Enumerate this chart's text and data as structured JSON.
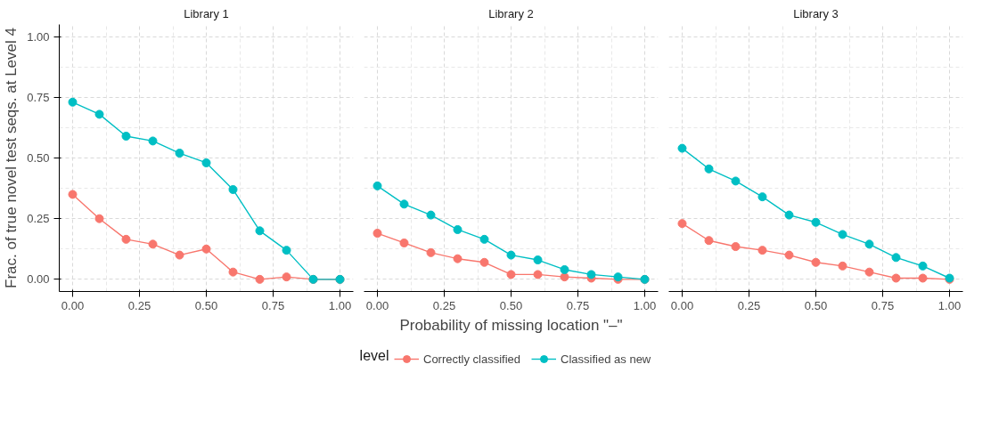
{
  "chart_data": [
    {
      "type": "line",
      "title": "Library 1",
      "ylabel": "Frac. of true novel test seqs. at Level 4",
      "x": [
        0,
        0.1,
        0.2,
        0.3,
        0.4,
        0.5,
        0.6,
        0.7,
        0.8,
        0.9,
        1.0
      ],
      "xlim": [
        -0.05,
        1.05
      ],
      "ylim": [
        -0.05,
        1.05
      ],
      "xticks": [
        "0.00",
        "0.25",
        "0.50",
        "0.75",
        "1.00"
      ],
      "yticks": [
        {
          "value": 0,
          "label": "0.00"
        },
        {
          "value": 0.25,
          "label": "0.25"
        },
        {
          "value": 0.5,
          "label": "0.50"
        },
        {
          "value": 0.75,
          "label": "0.75"
        },
        {
          "value": 1,
          "label": "1.00"
        }
      ],
      "grid": true,
      "marker": "circle",
      "line_style": "solid",
      "series": [
        {
          "color": "#f8766d",
          "values": [
            0.35,
            0.25,
            0.165,
            0.145,
            0.1,
            0.125,
            0.03,
            0,
            0.01,
            0,
            0
          ]
        },
        {
          "color": "#00bfc4",
          "values": [
            0.73,
            0.68,
            0.59,
            0.57,
            0.52,
            0.48,
            0.37,
            0.2,
            0.12,
            0,
            0
          ]
        }
      ]
    },
    {
      "type": "line",
      "title": "Library 2",
      "xlabel": "Probability of missing location \"–\"",
      "legend_title": "level",
      "legend": "bottom",
      "x": [
        0,
        0.1,
        0.2,
        0.3,
        0.4,
        0.5,
        0.6,
        0.7,
        0.8,
        0.9,
        1.0
      ],
      "xlim": [
        -0.05,
        1.05
      ],
      "ylim": [
        -0.05,
        1.05
      ],
      "xticks": [
        {
          "value": 0,
          "label": "0.00"
        },
        {
          "value": 0.25,
          "label": "0.25"
        },
        {
          "value": 0.5,
          "label": "0.50"
        },
        {
          "value": 0.75,
          "label": "0.75"
        },
        {
          "value": 1,
          "label": "1.00"
        }
      ],
      "tick_labels": "x",
      "grid": true,
      "marker": "circle",
      "line_style": "solid",
      "series": [
        {
          "name": "Correctly classified",
          "color": "#f8766d",
          "values": [
            0.19,
            0.15,
            0.11,
            0.085,
            0.07,
            0.02,
            0.02,
            0.01,
            0.005,
            0,
            0
          ]
        },
        {
          "name": "Classified as new",
          "color": "#00bfc4",
          "values": [
            0.385,
            0.31,
            0.265,
            0.205,
            0.165,
            0.1,
            0.08,
            0.04,
            0.02,
            0.01,
            0
          ]
        }
      ]
    },
    {
      "type": "line",
      "title": "Library 3",
      "x": [
        0,
        0.1,
        0.2,
        0.3,
        0.4,
        0.5,
        0.6,
        0.7,
        0.8,
        0.9,
        1.0
      ],
      "xlim": [
        -0.05,
        1.05
      ],
      "ylim": [
        -0.05,
        1.05
      ],
      "xticks": [
        {
          "value": 0,
          "label": "0.00"
        },
        {
          "value": 0.25,
          "label": "0.25"
        },
        {
          "value": 0.5,
          "label": "0.50"
        },
        {
          "value": 0.75,
          "label": "0.75"
        },
        {
          "value": 1,
          "label": "1.00"
        }
      ],
      "tick_labels": "x",
      "grid": true,
      "marker": "circle",
      "line_style": "solid",
      "series": [
        {
          "color": "#f8766d",
          "values": [
            0.23,
            0.16,
            0.135,
            0.12,
            0.1,
            0.07,
            0.055,
            0.03,
            0.005,
            0.005,
            0
          ]
        },
        {
          "color": "#00bfc4",
          "values": [
            0.54,
            0.455,
            0.405,
            0.34,
            0.265,
            0.235,
            0.185,
            0.145,
            0.09,
            0.055,
            0.005
          ]
        }
      ]
    }
  ]
}
